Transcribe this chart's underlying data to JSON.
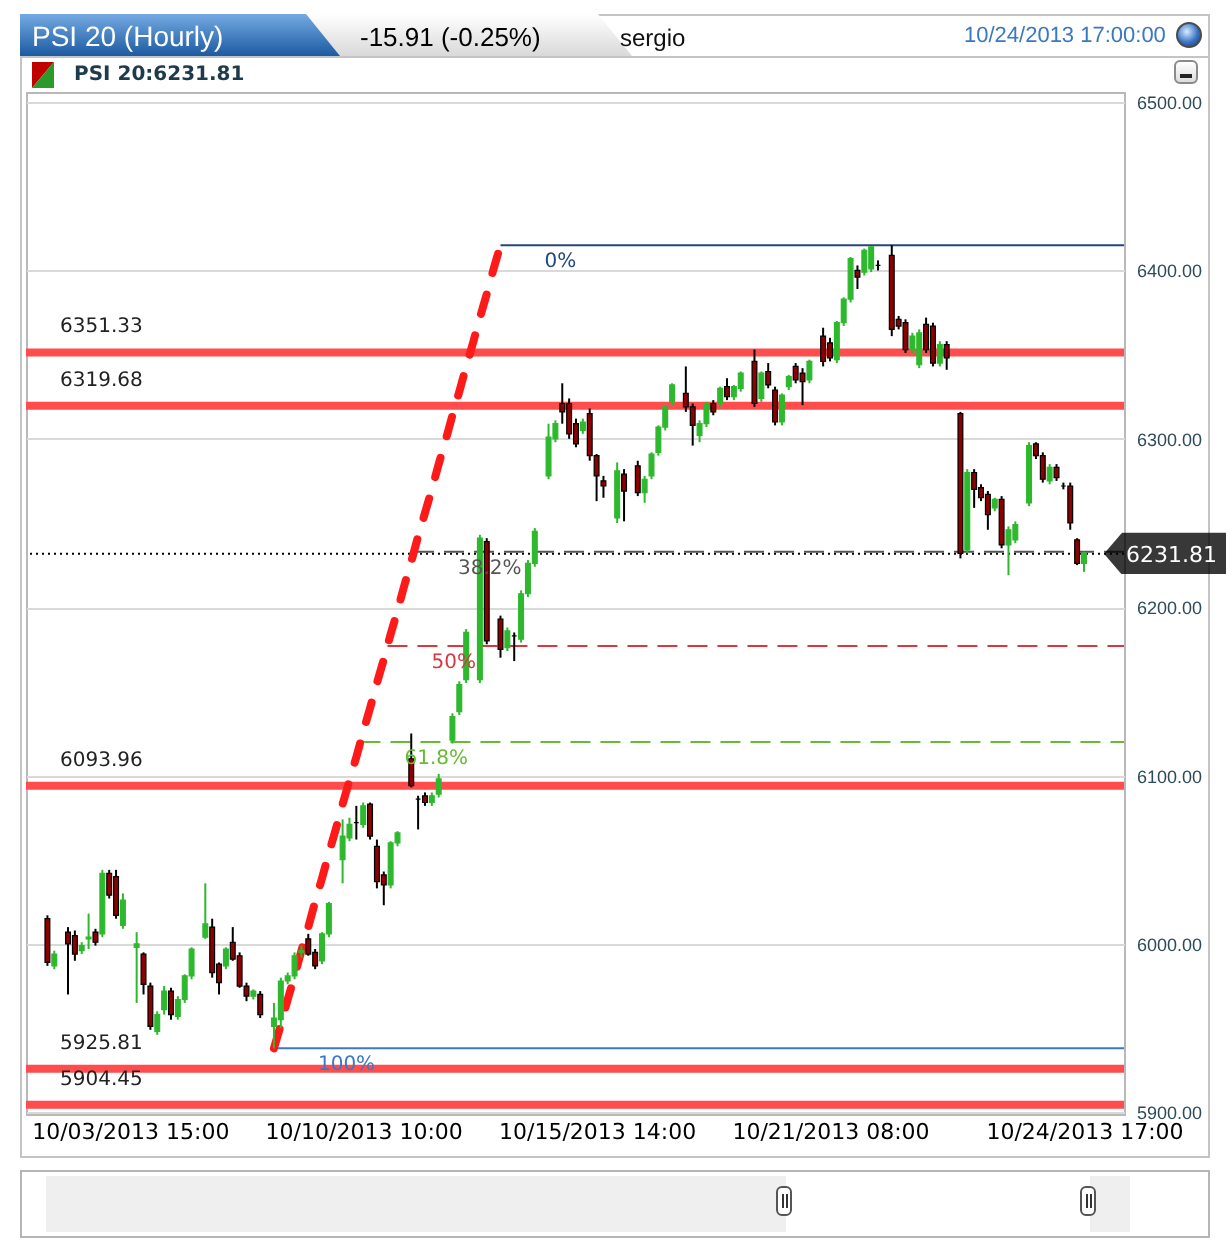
{
  "chart_data": {
    "type": "candlestick",
    "title": "PSI 20 (Hourly)",
    "subtitle": "-15.91 (-0.25%)",
    "annotations": [
      "sergio",
      "10/24/2013 17:00:00",
      "PSI 20:6231.81",
      {
        "text": "0%",
        "y": 6415
      },
      {
        "text": "38.2%",
        "y": 6233
      },
      {
        "text": "50%",
        "y": 6177
      },
      {
        "text": "61.8%",
        "y": 6120
      },
      {
        "text": "100%",
        "y": 5938
      }
    ],
    "categories": [
      null,
      null,
      null,
      null,
      null,
      null,
      null,
      null,
      null,
      null,
      null,
      null,
      "10/03/2013 15:00",
      null,
      null,
      null,
      null,
      null,
      null,
      null,
      null,
      null,
      null,
      null,
      null,
      null,
      null,
      null,
      null,
      null,
      null,
      null,
      null,
      null,
      null,
      null,
      null,
      null,
      null,
      null,
      null,
      null,
      null,
      null,
      null,
      null,
      "10/10/2013 10:00",
      null,
      null,
      null,
      null,
      null,
      null,
      null,
      null,
      null,
      null,
      null,
      null,
      null,
      null,
      null,
      null,
      null,
      null,
      null,
      null,
      null,
      null,
      null,
      null,
      null,
      null,
      null,
      null,
      null,
      null,
      null,
      null,
      null,
      "10/15/2013 14:00",
      null,
      null,
      null,
      null,
      null,
      null,
      null,
      null,
      null,
      null,
      null,
      null,
      null,
      null,
      null,
      null,
      null,
      null,
      null,
      null,
      null,
      null,
      null,
      null,
      null,
      null,
      null,
      null,
      null,
      null,
      null,
      null,
      null,
      "10/21/2013 08:00",
      null,
      null,
      null,
      null,
      null,
      null,
      null,
      null,
      null,
      null,
      null,
      null,
      null,
      null,
      null,
      null,
      null,
      null,
      null,
      null,
      null,
      null,
      null,
      null,
      null,
      null,
      null,
      null,
      null,
      null,
      null,
      null,
      null,
      null,
      null,
      null,
      "10/24/2013 17:00"
    ],
    "ohlc": [
      [
        6015,
        6017,
        5987,
        5989
      ],
      [
        5987,
        5996,
        5985,
        5994
      ],
      null,
      [
        6007,
        6010,
        5970,
        6000
      ],
      [
        6005,
        6008,
        5990,
        5994
      ],
      [
        5996,
        6001,
        5994,
        5999
      ],
      [
        6003,
        6018,
        5997,
        6004
      ],
      [
        6007,
        6009,
        5999,
        6001
      ],
      [
        6006,
        6044,
        6004,
        6042
      ],
      [
        6042,
        6044,
        6027,
        6029
      ],
      [
        6040,
        6044,
        6015,
        6017
      ],
      [
        6011,
        6030,
        6009,
        6026
      ],
      null,
      [
        5998,
        6007,
        5965,
        6000
      ],
      [
        5994,
        5995,
        5970,
        5976
      ],
      [
        5975,
        5977,
        5949,
        5951
      ],
      [
        5948,
        5960,
        5946,
        5958
      ],
      [
        5961,
        5975,
        5958,
        5972
      ],
      [
        5972,
        5974,
        5955,
        5958
      ],
      [
        5957,
        5969,
        5955,
        5967
      ],
      [
        5967,
        5982,
        5965,
        5981
      ],
      [
        5981,
        5998,
        5979,
        5997
      ],
      null,
      [
        6004,
        6036,
        6003,
        6012
      ],
      [
        6010,
        6015,
        5980,
        5983
      ],
      [
        5988,
        5989,
        5970,
        5977
      ],
      [
        5987,
        5998,
        5985,
        5997
      ],
      [
        6001,
        6010,
        5990,
        5991
      ],
      [
        5993,
        5995,
        5974,
        5975
      ],
      [
        5975,
        5977,
        5966,
        5969
      ],
      [
        5969,
        5973,
        5967,
        5972
      ],
      [
        5970,
        5972,
        5956,
        5958
      ],
      null,
      [
        5951,
        5965,
        5938,
        5956
      ],
      [
        5955,
        5980,
        5950,
        5978
      ],
      [
        5978,
        5983,
        5976,
        5981
      ],
      [
        5981,
        5995,
        5979,
        5993
      ],
      [
        5995,
        5999,
        5992,
        5996
      ],
      [
        6003,
        6006,
        5993,
        5994
      ],
      [
        5995,
        5997,
        5985,
        5987
      ],
      [
        5990,
        6007,
        5988,
        6006
      ],
      [
        6006,
        6025,
        6004,
        6024
      ],
      null,
      [
        6050,
        6074,
        6036,
        6064
      ],
      [
        6063,
        6075,
        6061,
        6071
      ],
      [
        6072,
        6082,
        6062,
        6072
      ],
      [
        6071,
        6084,
        6069,
        6082
      ],
      [
        6083,
        6084,
        6062,
        6064
      ],
      [
        6058,
        6062,
        6033,
        6037
      ],
      [
        6041,
        6043,
        6023,
        6035
      ],
      [
        6035,
        6061,
        6033,
        6060
      ],
      [
        6060,
        6067,
        6058,
        6066
      ],
      null,
      [
        6110,
        6125,
        6093,
        6094
      ],
      [
        6086,
        6088,
        6068,
        6086
      ],
      [
        6088,
        6090,
        6082,
        6084
      ],
      [
        6084,
        6090,
        6082,
        6088
      ],
      [
        6089,
        6101,
        6087,
        6098
      ],
      null,
      [
        6121,
        6137,
        6119,
        6135
      ],
      [
        6138,
        6156,
        6136,
        6154
      ],
      [
        6157,
        6187,
        6155,
        6185
      ],
      null,
      [
        6157,
        6243,
        6155,
        6241
      ],
      [
        6239,
        6241,
        6178,
        6180
      ],
      null,
      [
        6193,
        6195,
        6170,
        6175
      ],
      [
        6176,
        6188,
        6174,
        6186
      ],
      [
        6183,
        6185,
        6168,
        6183
      ],
      [
        6181,
        6210,
        6179,
        6208
      ],
      [
        6208,
        6228,
        6206,
        6226
      ],
      [
        6226,
        6247,
        6224,
        6245
      ],
      null,
      [
        6278,
        6309,
        6276,
        6301
      ],
      [
        6300,
        6311,
        6298,
        6309
      ],
      [
        6321,
        6333,
        6309,
        6316
      ],
      [
        6321,
        6324,
        6300,
        6303
      ],
      [
        6309,
        6312,
        6295,
        6297
      ],
      [
        6305,
        6312,
        6303,
        6310
      ],
      [
        6315,
        6318,
        6287,
        6290
      ],
      [
        6290,
        6291,
        6263,
        6278
      ],
      [
        6275,
        6278,
        6265,
        6272
      ],
      null,
      [
        6253,
        6286,
        6250,
        6281
      ],
      [
        6279,
        6282,
        6251,
        6269
      ],
      null,
      [
        6284,
        6287,
        6266,
        6268
      ],
      [
        6268,
        6278,
        6262,
        6276
      ],
      [
        6278,
        6292,
        6276,
        6291
      ],
      [
        6292,
        6308,
        6290,
        6307
      ],
      [
        6307,
        6320,
        6305,
        6319
      ],
      [
        6322,
        6333,
        6320,
        6332
      ],
      null,
      [
        6327,
        6343,
        6316,
        6319
      ],
      [
        6319,
        6321,
        6296,
        6308
      ],
      [
        6302,
        6311,
        6298,
        6309
      ],
      [
        6309,
        6322,
        6307,
        6321
      ],
      [
        6321,
        6323,
        6314,
        6316
      ],
      [
        6321,
        6331,
        6319,
        6330
      ],
      [
        6331,
        6336,
        6323,
        6325
      ],
      [
        6325,
        6332,
        6323,
        6331
      ],
      [
        6330,
        6340,
        6328,
        6339
      ],
      null,
      [
        6346,
        6353,
        6319,
        6321
      ],
      [
        6324,
        6340,
        6322,
        6339
      ],
      [
        6340,
        6345,
        6330,
        6332
      ],
      [
        6329,
        6331,
        6308,
        6310
      ],
      [
        6310,
        6327,
        6308,
        6326
      ],
      [
        6331,
        6338,
        6329,
        6337
      ],
      [
        6343,
        6345,
        6333,
        6335
      ],
      [
        6339,
        6342,
        6320,
        6334
      ],
      [
        6335,
        6347,
        6333,
        6346
      ],
      null,
      [
        6361,
        6366,
        6343,
        6346
      ],
      [
        6357,
        6360,
        6346,
        6348
      ],
      [
        6347,
        6370,
        6345,
        6369
      ],
      [
        6369,
        6384,
        6367,
        6383
      ],
      [
        6383,
        6408,
        6381,
        6407
      ],
      [
        6400,
        6403,
        6389,
        6396
      ],
      [
        6399,
        6413,
        6397,
        6412
      ],
      [
        6401,
        6414,
        6399,
        6414
      ],
      [
        6403,
        6406,
        6400,
        6403
      ],
      null,
      [
        6409,
        6415,
        6361,
        6365
      ],
      [
        6371,
        6373,
        6365,
        6367
      ],
      [
        6369,
        6371,
        6351,
        6353
      ],
      [
        6353,
        6363,
        6351,
        6361
      ],
      [
        6344,
        6365,
        6342,
        6363
      ],
      [
        6368,
        6372,
        6351,
        6353
      ],
      [
        6367,
        6369,
        6343,
        6345
      ],
      [
        6345,
        6358,
        6343,
        6356
      ],
      [
        6356,
        6358,
        6341,
        6348
      ],
      null,
      [
        6315,
        6316,
        6229,
        6232
      ],
      [
        6234,
        6282,
        6232,
        6280
      ],
      [
        6280,
        6282,
        6259,
        6270
      ],
      [
        6271,
        6273,
        6263,
        6265
      ],
      [
        6267,
        6269,
        6246,
        6255
      ],
      [
        6259,
        6265,
        6257,
        6264
      ],
      [
        6264,
        6266,
        6235,
        6237
      ],
      [
        6237,
        6248,
        6219,
        6246
      ],
      [
        6240,
        6251,
        6238,
        6249
      ],
      null,
      [
        6262,
        6298,
        6260,
        6296
      ],
      [
        6297,
        6298,
        6288,
        6290
      ],
      [
        6290,
        6292,
        6274,
        6276
      ],
      [
        6275,
        6285,
        6273,
        6283
      ],
      [
        6283,
        6285,
        6275,
        6277
      ],
      [
        6272,
        6274,
        6270,
        6272
      ],
      [
        6272,
        6274,
        6246,
        6250
      ],
      [
        6240,
        6241,
        6225,
        6226
      ],
      [
        6226,
        6233,
        6221,
        6231.81
      ]
    ],
    "colors": [
      "#8b0000",
      "#2eb82e",
      null,
      "#8b0000",
      "#8b0000",
      "#2eb82e",
      "#2eb82e",
      "#8b0000",
      "#2eb82e",
      "#8b0000",
      "#8b0000",
      "#2eb82e",
      null,
      "#2eb82e",
      "#8b0000",
      "#8b0000",
      "#2eb82e",
      "#2eb82e",
      "#8b0000",
      "#2eb82e",
      "#2eb82e",
      "#2eb82e",
      null,
      "#2eb82e",
      "#8b0000",
      "#8b0000",
      "#2eb82e",
      "#8b0000",
      "#8b0000",
      "#8b0000",
      "#2eb82e",
      "#8b0000",
      null,
      "#2eb82e",
      "#2eb82e",
      "#2eb82e",
      "#2eb82e",
      "#2eb82e",
      "#8b0000",
      "#8b0000",
      "#2eb82e",
      "#2eb82e",
      null,
      "#2eb82e",
      "#2eb82e",
      "#000000",
      "#2eb82e",
      "#8b0000",
      "#8b0000",
      "#8b0000",
      "#2eb82e",
      "#2eb82e",
      null,
      "#8b0000",
      "#000000",
      "#8b0000",
      "#2eb82e",
      "#2eb82e",
      null,
      "#2eb82e",
      "#2eb82e",
      "#2eb82e",
      null,
      "#2eb82e",
      "#8b0000",
      null,
      "#8b0000",
      "#2eb82e",
      "#000000",
      "#2eb82e",
      "#2eb82e",
      "#2eb82e",
      null,
      "#2eb82e",
      "#2eb82e",
      "#8b0000",
      "#8b0000",
      "#8b0000",
      "#2eb82e",
      "#8b0000",
      "#8b0000",
      "#8b0000",
      null,
      "#2eb82e",
      "#8b0000",
      null,
      "#8b0000",
      "#2eb82e",
      "#2eb82e",
      "#2eb82e",
      "#2eb82e",
      "#2eb82e",
      null,
      "#8b0000",
      "#8b0000",
      "#2eb82e",
      "#2eb82e",
      "#8b0000",
      "#2eb82e",
      "#8b0000",
      "#2eb82e",
      "#2eb82e",
      null,
      "#8b0000",
      "#2eb82e",
      "#8b0000",
      "#8b0000",
      "#2eb82e",
      "#2eb82e",
      "#8b0000",
      "#8b0000",
      "#2eb82e",
      null,
      "#8b0000",
      "#8b0000",
      "#2eb82e",
      "#2eb82e",
      "#2eb82e",
      "#8b0000",
      "#2eb82e",
      "#2eb82e",
      "#000000",
      null,
      "#8b0000",
      "#8b0000",
      "#8b0000",
      "#2eb82e",
      "#2eb82e",
      "#8b0000",
      "#8b0000",
      "#2eb82e",
      "#8b0000",
      null,
      "#8b0000",
      "#2eb82e",
      "#8b0000",
      "#8b0000",
      "#8b0000",
      "#2eb82e",
      "#8b0000",
      "#2eb82e",
      "#2eb82e",
      null,
      "#2eb82e",
      "#8b0000",
      "#8b0000",
      "#2eb82e",
      "#8b0000",
      "#000000",
      "#8b0000",
      "#8b0000",
      "#2eb82e"
    ],
    "series": [
      {
        "type": "line",
        "color": "#ff1a1a",
        "line_style": "dashed",
        "values": [
          null,
          null,
          null,
          null,
          null,
          null,
          null,
          null,
          null,
          null,
          null,
          null,
          null,
          null,
          null,
          null,
          null,
          null,
          null,
          null,
          null,
          null,
          null,
          null,
          null,
          null,
          null,
          null,
          null,
          null,
          null,
          null,
          null,
          5938,
          5952,
          5967,
          5981,
          5996,
          6010,
          6025,
          6039,
          6054,
          6068,
          6083,
          6097,
          6111,
          6126,
          6140,
          6155,
          6169,
          6184,
          6198,
          6213,
          6227,
          6242,
          6256,
          6270,
          6285,
          6299,
          6314,
          6328,
          6343,
          6357,
          6372,
          6386,
          6401,
          6415,
          null,
          null,
          null,
          null,
          null,
          null,
          null,
          null,
          null,
          null,
          null,
          null,
          null,
          null,
          null,
          null,
          null,
          null,
          null,
          null,
          null,
          null,
          null,
          null,
          null,
          null,
          null,
          null,
          null,
          null,
          null,
          null,
          null,
          null,
          null,
          null,
          null,
          null,
          null,
          null,
          null,
          null,
          null,
          null,
          null,
          null,
          null,
          null,
          null,
          null,
          null,
          null,
          null,
          null,
          null,
          null,
          null,
          null,
          null,
          null,
          null,
          null,
          null,
          null,
          null,
          null,
          null,
          null,
          null,
          null,
          null,
          null,
          null,
          null,
          null,
          null,
          null,
          null,
          null,
          null,
          null,
          null,
          null,
          null,
          null
        ]
      }
    ],
    "ylim": [
      5899,
      6506
    ],
    "yticks": [
      {
        "value": 5900,
        "label": "5900.00"
      },
      {
        "value": 6000,
        "label": "6000.00"
      },
      {
        "value": 6100,
        "label": "6100.00"
      },
      {
        "value": 6200,
        "label": "6200.00"
      },
      {
        "value": 6300,
        "label": "6300.00"
      },
      {
        "value": 6400,
        "label": "6400.00"
      },
      {
        "value": 6500,
        "label": "6500.00"
      }
    ],
    "grid": "y",
    "ref_lines": [
      {
        "axis": "y",
        "value": 6351.33,
        "label": "6351.33",
        "color": "#ff4d4d"
      },
      {
        "axis": "y",
        "value": 6319.68,
        "label": "6319.68",
        "color": "#ff4d4d"
      },
      {
        "axis": "y",
        "value": 6093.96,
        "label": "6093.96",
        "color": "#ff4d4d"
      },
      {
        "axis": "y",
        "value": 5925.81,
        "label": "5925.81",
        "color": "#ff4d4d"
      },
      {
        "axis": "y",
        "value": 5904.45,
        "label": "5904.45",
        "color": "#ff4d4d"
      },
      {
        "axis": "y",
        "value": 6231.81,
        "label": "6231.81",
        "color": "#000000",
        "line_style": "dotted"
      },
      {
        "axis": "y",
        "value": 6415,
        "color": "#24477a"
      },
      {
        "axis": "y",
        "value": 6233,
        "color": "#555555",
        "line_style": "dashed"
      },
      {
        "axis": "y",
        "value": 6177,
        "color": "#d9363e",
        "line_style": "dashed"
      },
      {
        "axis": "y",
        "value": 6120,
        "color": "#66bb33",
        "line_style": "dashed"
      },
      {
        "axis": "y",
        "value": 5938,
        "color": "#3a78c8"
      }
    ]
  }
}
